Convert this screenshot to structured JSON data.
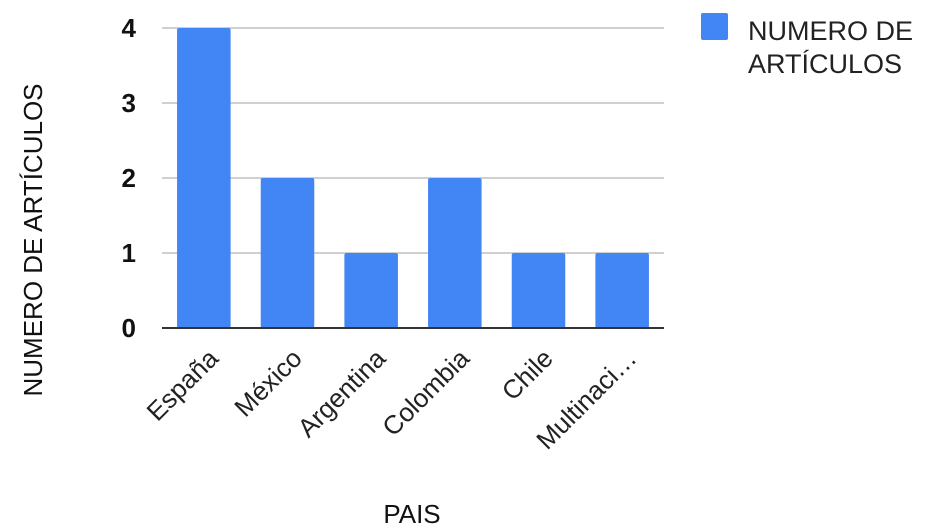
{
  "chart_data": {
    "type": "bar",
    "categories": [
      "España",
      "México",
      "Argentina",
      "Colombia",
      "Chile",
      "Multinaci…"
    ],
    "series": [
      {
        "name": "NUMERO DE ARTÍCULOS",
        "values": [
          4,
          2,
          1,
          2,
          1,
          1
        ],
        "color": "#4285f4"
      }
    ],
    "title": "",
    "xlabel": "PAIS",
    "ylabel": "NUMERO DE ARTÍCULOS",
    "ylim": [
      0,
      4
    ],
    "yticks": [
      "0",
      "1",
      "2",
      "3",
      "4"
    ],
    "grid": true,
    "legend": {
      "position": "top-right",
      "lines": [
        "NUMERO DE",
        "ARTÍCULOS"
      ]
    }
  }
}
